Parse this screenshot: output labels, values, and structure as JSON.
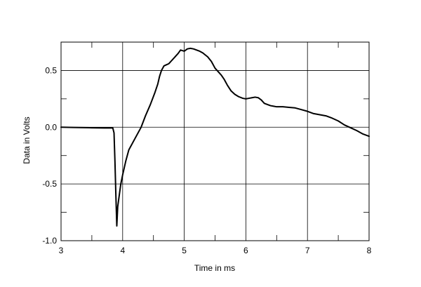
{
  "chart_data": {
    "type": "line",
    "title": "",
    "xlabel": "Time in ms",
    "ylabel": "Data in Volts",
    "xlim": [
      3,
      8
    ],
    "ylim": [
      -1.0,
      0.75
    ],
    "grid": true,
    "x_ticks": [
      3,
      4,
      5,
      6,
      7,
      8
    ],
    "x_tick_labels": [
      "3",
      "4",
      "5",
      "6",
      "7",
      "8"
    ],
    "y_ticks": [
      -1.0,
      -0.5,
      0.0,
      0.5
    ],
    "y_tick_labels": [
      "-1.0",
      "-0.5",
      "0.0",
      "0.5"
    ],
    "y_minor_ticks": [
      -0.75,
      -0.25,
      0.25
    ],
    "colors": {
      "line": "#000000",
      "grid": "#000000",
      "background": "#ffffff"
    },
    "series": [
      {
        "x": [
          3.0,
          3.2,
          3.5,
          3.7,
          3.84,
          3.86,
          3.875,
          3.89,
          3.905,
          3.92,
          3.94,
          3.97,
          4.0,
          4.05,
          4.1,
          4.2,
          4.3,
          4.37,
          4.45,
          4.52,
          4.57,
          4.6,
          4.63,
          4.67,
          4.71,
          4.75,
          4.8,
          4.85,
          4.9,
          4.94,
          5.0,
          5.05,
          5.1,
          5.15,
          5.2,
          5.25,
          5.3,
          5.38,
          5.44,
          5.5,
          5.55,
          5.6,
          5.65,
          5.7,
          5.76,
          5.82,
          5.88,
          5.95,
          6.0,
          6.05,
          6.1,
          6.15,
          6.2,
          6.25,
          6.3,
          6.35,
          6.4,
          6.45,
          6.5,
          6.6,
          6.7,
          6.8,
          6.9,
          7.0,
          7.1,
          7.2,
          7.3,
          7.4,
          7.5,
          7.6,
          7.7,
          7.8,
          7.9,
          8.0
        ],
        "y": [
          0.0,
          -0.002,
          -0.005,
          -0.007,
          -0.007,
          -0.05,
          -0.3,
          -0.6,
          -0.87,
          -0.7,
          -0.62,
          -0.5,
          -0.42,
          -0.3,
          -0.2,
          -0.1,
          0.0,
          0.1,
          0.2,
          0.3,
          0.38,
          0.45,
          0.5,
          0.54,
          0.55,
          0.56,
          0.59,
          0.62,
          0.65,
          0.68,
          0.67,
          0.69,
          0.695,
          0.69,
          0.68,
          0.67,
          0.655,
          0.62,
          0.58,
          0.52,
          0.49,
          0.46,
          0.42,
          0.37,
          0.32,
          0.29,
          0.27,
          0.255,
          0.25,
          0.255,
          0.26,
          0.265,
          0.26,
          0.24,
          0.21,
          0.2,
          0.19,
          0.185,
          0.18,
          0.18,
          0.175,
          0.17,
          0.155,
          0.14,
          0.12,
          0.11,
          0.1,
          0.08,
          0.055,
          0.02,
          -0.005,
          -0.03,
          -0.06,
          -0.08
        ]
      }
    ]
  }
}
